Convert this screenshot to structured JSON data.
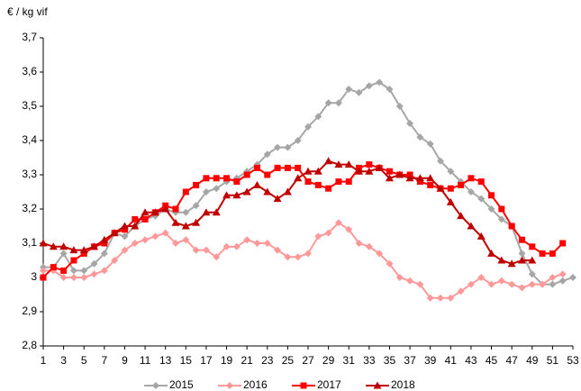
{
  "chart_data": {
    "type": "line",
    "ylabel": "€ / kg vif",
    "x": [
      1,
      2,
      3,
      4,
      5,
      6,
      7,
      8,
      9,
      10,
      11,
      12,
      13,
      14,
      15,
      16,
      17,
      18,
      19,
      20,
      21,
      22,
      23,
      24,
      25,
      26,
      27,
      28,
      29,
      30,
      31,
      32,
      33,
      34,
      35,
      36,
      37,
      38,
      39,
      40,
      41,
      42,
      43,
      44,
      45,
      46,
      47,
      48,
      49,
      50,
      51,
      52,
      53
    ],
    "xlim": [
      1,
      53
    ],
    "xticks": [
      1,
      3,
      5,
      7,
      9,
      11,
      13,
      15,
      17,
      19,
      21,
      23,
      25,
      27,
      29,
      31,
      33,
      35,
      37,
      39,
      41,
      43,
      45,
      47,
      49,
      51,
      53
    ],
    "ylim": [
      2.8,
      3.7
    ],
    "yticks": [
      {
        "value": 2.8,
        "label": "2,8"
      },
      {
        "value": 2.9,
        "label": "2,9"
      },
      3,
      {
        "value": 3.1,
        "label": "3,1"
      },
      {
        "value": 3.2,
        "label": "3,2"
      },
      {
        "value": 3.3,
        "label": "3,3"
      },
      {
        "value": 3.4,
        "label": "3,4"
      },
      {
        "value": 3.5,
        "label": "3,5"
      },
      {
        "value": 3.6,
        "label": "3,6"
      },
      {
        "value": 3.7,
        "label": "3,7"
      }
    ],
    "grid": false,
    "legend": "bottom",
    "series": [
      {
        "name": "2015",
        "color": "#a6a6a6",
        "marker": "diamond",
        "values": [
          3.03,
          3.03,
          3.07,
          3.02,
          3.02,
          3.04,
          3.07,
          3.13,
          3.12,
          3.15,
          3.17,
          3.18,
          3.2,
          3.19,
          3.19,
          3.21,
          3.25,
          3.26,
          3.28,
          3.29,
          3.31,
          3.33,
          3.36,
          3.38,
          3.38,
          3.4,
          3.44,
          3.47,
          3.51,
          3.51,
          3.55,
          3.54,
          3.56,
          3.57,
          3.55,
          3.5,
          3.45,
          3.41,
          3.39,
          3.34,
          3.31,
          3.28,
          3.25,
          3.23,
          3.2,
          3.17,
          3.15,
          3.07,
          3.01,
          2.98,
          2.98,
          2.99,
          3.0
        ]
      },
      {
        "name": "2016",
        "color": "#ff9999",
        "marker": "diamond",
        "values": [
          3.02,
          3.02,
          3.0,
          3.0,
          3.0,
          3.01,
          3.02,
          3.05,
          3.08,
          3.1,
          3.11,
          3.12,
          3.13,
          3.1,
          3.11,
          3.08,
          3.08,
          3.06,
          3.09,
          3.09,
          3.11,
          3.1,
          3.1,
          3.08,
          3.06,
          3.06,
          3.07,
          3.12,
          3.13,
          3.16,
          3.14,
          3.1,
          3.09,
          3.07,
          3.04,
          3.0,
          2.99,
          2.98,
          2.94,
          2.94,
          2.94,
          2.96,
          2.98,
          3.0,
          2.98,
          2.99,
          2.98,
          2.97,
          2.98,
          2.98,
          3.0,
          3.01,
          null
        ]
      },
      {
        "name": "2017",
        "color": "#ff0000",
        "marker": "square",
        "values": [
          3.0,
          3.03,
          3.02,
          3.05,
          3.07,
          3.09,
          3.1,
          3.13,
          3.14,
          3.17,
          3.17,
          3.19,
          3.21,
          3.2,
          3.25,
          3.27,
          3.29,
          3.29,
          3.29,
          3.28,
          3.3,
          3.32,
          3.3,
          3.32,
          3.32,
          3.32,
          3.28,
          3.27,
          3.26,
          3.28,
          3.28,
          3.32,
          3.33,
          3.32,
          3.31,
          3.3,
          3.3,
          3.28,
          3.27,
          3.26,
          3.26,
          3.27,
          3.29,
          3.28,
          3.24,
          3.2,
          3.15,
          3.11,
          3.09,
          3.07,
          3.07,
          3.1,
          null
        ]
      },
      {
        "name": "2018",
        "color": "#c00000",
        "marker": "triangle",
        "values": [
          3.1,
          3.09,
          3.09,
          3.08,
          3.08,
          3.09,
          3.11,
          3.13,
          3.15,
          3.15,
          3.19,
          3.19,
          3.2,
          3.16,
          3.15,
          3.16,
          3.19,
          3.19,
          3.24,
          3.24,
          3.25,
          3.27,
          3.25,
          3.23,
          3.25,
          3.29,
          3.31,
          3.31,
          3.34,
          3.33,
          3.33,
          3.31,
          3.31,
          3.32,
          3.29,
          3.3,
          3.29,
          3.29,
          3.29,
          3.26,
          3.22,
          3.18,
          3.15,
          3.12,
          3.07,
          3.05,
          3.04,
          3.05,
          3.05,
          null,
          null,
          null,
          null
        ]
      }
    ]
  }
}
